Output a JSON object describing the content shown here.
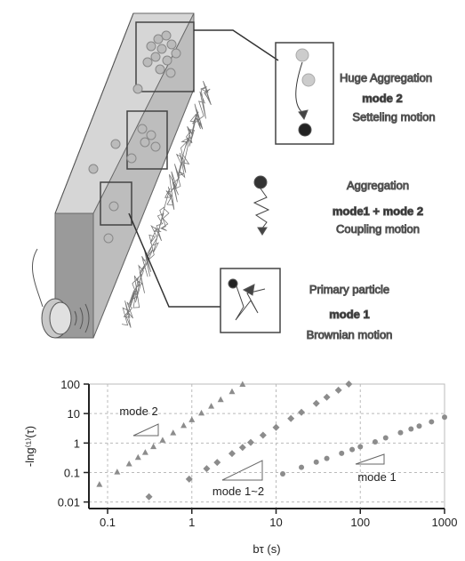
{
  "illustration": {
    "huge_aggregation": {
      "title": "Huge Aggregation",
      "mode": "mode 2",
      "motion": "Setteling motion"
    },
    "aggregation": {
      "title": "Aggregation",
      "mode": "mode1 + mode 2",
      "motion": "Coupling motion"
    },
    "primary": {
      "title": "Primary particle",
      "mode": "mode 1",
      "motion": "Brownian motion"
    }
  },
  "chart_data": {
    "type": "scatter",
    "xlabel": "bτ (s)",
    "ylabel": "-lng⁽¹⁾(τ)",
    "xscale": "log",
    "yscale": "log",
    "grid": true,
    "xlim": [
      0.06,
      1000
    ],
    "ylim": [
      0.006,
      100
    ],
    "xticks": [
      0.1,
      1,
      10,
      100,
      1000
    ],
    "yticks": [
      0.01,
      0.1,
      1,
      10,
      100
    ],
    "annotations": [
      "mode 2",
      "mode 1~2",
      "mode 1"
    ],
    "series": [
      {
        "marker": "triangle",
        "color": "#8c8c8c",
        "x": [
          0.08,
          0.13,
          0.18,
          0.23,
          0.28,
          0.35,
          0.45,
          0.6,
          0.8,
          1,
          1.3,
          1.7,
          2.2,
          3,
          4
        ],
        "values": [
          0.04,
          0.106,
          0.2,
          0.33,
          0.49,
          0.77,
          1.27,
          2.25,
          4,
          6.25,
          10.6,
          18.1,
          30.3,
          56.3,
          100
        ]
      },
      {
        "marker": "diamond",
        "color": "#8c8c8c",
        "x": [
          0.31,
          0.93,
          1.5,
          2,
          3,
          4,
          5,
          7,
          10,
          15,
          20,
          30,
          40,
          55,
          73
        ],
        "values": [
          0.015,
          0.06,
          0.135,
          0.22,
          0.44,
          0.71,
          1.05,
          1.85,
          3.4,
          6.8,
          11,
          22,
          36,
          62,
          100
        ]
      },
      {
        "marker": "circle",
        "color": "#8c8c8c",
        "x": [
          12,
          20,
          30,
          40,
          60,
          80,
          100,
          150,
          200,
          300,
          400,
          500,
          700,
          1000
        ],
        "values": [
          0.09,
          0.15,
          0.225,
          0.3,
          0.45,
          0.6,
          0.75,
          1.1,
          1.5,
          2.25,
          3,
          3.75,
          5.25,
          7.5
        ]
      }
    ]
  }
}
